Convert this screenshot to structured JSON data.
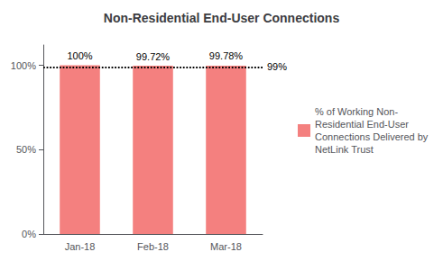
{
  "chart_data": {
    "type": "bar",
    "title": "Non-Residential End-User Connections",
    "categories": [
      "Jan-18",
      "Feb-18",
      "Mar-18"
    ],
    "series": [
      {
        "name": "% of Working Non-\nResidential End-User\nConnections Delivered by\nNetLink Trust",
        "color": "#F4807F",
        "values": [
          100.0,
          99.72,
          99.78
        ],
        "value_labels": [
          "100%",
          "99.72%",
          "99.78%"
        ]
      }
    ],
    "data_labels": true,
    "ylim": [
      0,
      112
    ],
    "yticks": [
      {
        "value": 0,
        "label": "0%"
      },
      {
        "value": 50,
        "label": "50%"
      },
      {
        "value": 100,
        "label": "100%"
      }
    ],
    "grid": false,
    "legend": "right",
    "reference_line": {
      "y": 99,
      "label": "99%",
      "line_style": "dotted"
    }
  }
}
